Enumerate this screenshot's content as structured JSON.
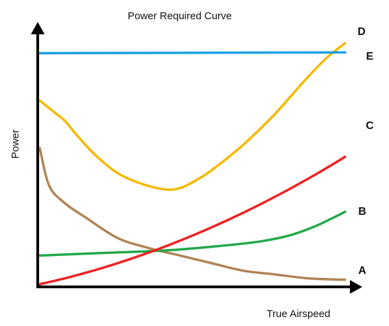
{
  "chart_data": {
    "type": "line",
    "title": "Power Required Curve",
    "xlabel": "True Airspeed",
    "ylabel": "Power",
    "xlim": [
      0,
      100
    ],
    "ylim": [
      0,
      100
    ],
    "grid": false,
    "ticks": "none",
    "series": [
      {
        "name": "A",
        "color": "#b08456",
        "x": [
          0,
          3,
          8,
          15,
          25,
          35,
          45,
          55,
          65,
          75,
          85,
          92,
          98
        ],
        "y": [
          55,
          40,
          33,
          27,
          19,
          15,
          12,
          9,
          6,
          4.5,
          3,
          2.5,
          2.3
        ]
      },
      {
        "name": "B",
        "color": "#22a84a",
        "x": [
          0,
          20,
          40,
          55,
          70,
          80,
          88,
          94,
          98
        ],
        "y": [
          12,
          13,
          14,
          15.5,
          17.5,
          20,
          23.5,
          27,
          29.5
        ]
      },
      {
        "name": "C",
        "color": "#ee2222",
        "x": [
          0,
          10,
          20,
          30,
          40,
          50,
          60,
          70,
          80,
          90,
          98
        ],
        "y": [
          0.5,
          3.5,
          7,
          11,
          15.5,
          20.5,
          26,
          32,
          38.5,
          45.5,
          51.5
        ]
      },
      {
        "name": "D",
        "color": "#f5b800",
        "x": [
          0,
          2,
          5,
          8,
          12,
          18,
          25,
          32,
          40,
          45,
          50,
          55,
          65,
          75,
          85,
          92,
          98
        ],
        "y": [
          74,
          72,
          69,
          66,
          60,
          52,
          45,
          41,
          38.5,
          39,
          42,
          46,
          56,
          68,
          82,
          91,
          97
        ]
      },
      {
        "name": "E",
        "color": "#1ba1e2",
        "x": [
          0,
          98
        ],
        "y": [
          93,
          93.3
        ]
      }
    ],
    "annotations": [
      {
        "series": "A",
        "label": "A"
      },
      {
        "series": "B",
        "label": "B"
      },
      {
        "series": "C",
        "label": "C"
      },
      {
        "series": "D",
        "label": "D"
      },
      {
        "series": "E",
        "label": "E"
      }
    ]
  }
}
